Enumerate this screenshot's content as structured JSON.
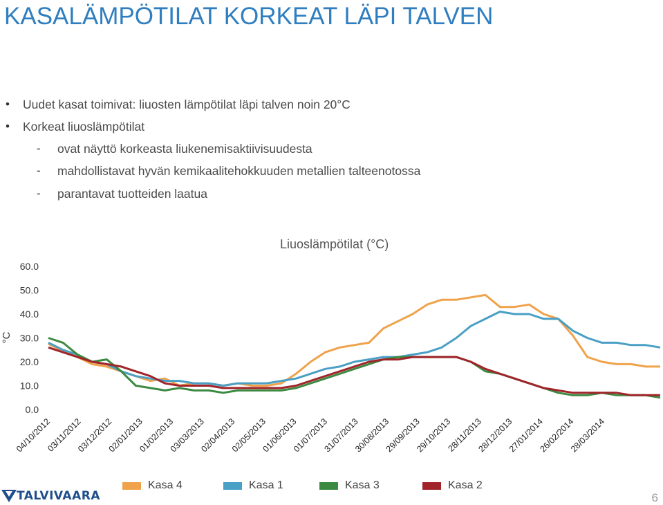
{
  "slide": {
    "title": "KASALÄMPÖTILAT KORKEAT LÄPI TALVEN",
    "bullets": [
      {
        "marker": "•",
        "text": "Uudet kasat toimivat: liuosten lämpötilat läpi talven noin 20°C"
      },
      {
        "marker": "•",
        "text": "Korkeat liuoslämpötilat"
      },
      {
        "marker": "-",
        "text": "ovat näyttö korkeasta liukenemisaktiivisuudesta"
      },
      {
        "marker": "-",
        "text": "mahdollistavat hyvän kemikaalitehokkuuden metallien talteenotossa"
      },
      {
        "marker": "-",
        "text": "parantavat tuotteiden laatua"
      }
    ],
    "logo_text": "TALVIVAARA",
    "page_number": "6"
  },
  "chart_data": {
    "type": "line",
    "title": "Liuoslämpötilat (°C)",
    "ylabel": "°C",
    "ylim": [
      0,
      60
    ],
    "yticks": [
      "60.0",
      "50.0",
      "40.0",
      "30.0",
      "20.0",
      "10.0",
      "0.0"
    ],
    "grid": false,
    "legend_position": "bottom",
    "x_tick_labels": [
      "04/10/2012",
      "03/11/2012",
      "03/12/2012",
      "02/01/2013",
      "01/02/2013",
      "03/03/2013",
      "02/04/2013",
      "02/05/2013",
      "01/06/2013",
      "01/07/2013",
      "31/07/2013",
      "30/08/2013",
      "29/09/2013",
      "29/10/2013",
      "28/11/2013",
      "28/12/2013",
      "27/01/2014",
      "26/02/2014",
      "28/03/2014"
    ],
    "series": [
      {
        "name": "Kasa 4",
        "color": "#f0a24a",
        "values": [
          27.5,
          24.5,
          22,
          19,
          18,
          16,
          14,
          12,
          13,
          10,
          11,
          11,
          10,
          11,
          10,
          10,
          11,
          15,
          20,
          24,
          26,
          27,
          28,
          34,
          37,
          40,
          44,
          46,
          46,
          47,
          48,
          43,
          43,
          44,
          40,
          38,
          31,
          22,
          20,
          19,
          19,
          18,
          18
        ]
      },
      {
        "name": "Kasa 1",
        "color": "#4a9fc5",
        "values": [
          28,
          25,
          23,
          20,
          19,
          16,
          14,
          13,
          12,
          12,
          11,
          11,
          10,
          11,
          11,
          11,
          12,
          13,
          15,
          17,
          18,
          20,
          21,
          22,
          22,
          23,
          24,
          26,
          30,
          35,
          38,
          41,
          40,
          40,
          38,
          38,
          33,
          30,
          28,
          28,
          27,
          27,
          26
        ]
      },
      {
        "name": "Kasa 3",
        "color": "#3c8a42",
        "values": [
          30,
          28,
          23,
          20,
          21,
          16,
          10,
          9,
          8,
          9,
          8,
          8,
          7,
          8,
          8,
          8,
          8,
          9,
          11,
          13,
          15,
          17,
          19,
          21,
          22,
          22,
          22,
          22,
          22,
          20,
          16,
          15,
          13,
          11,
          9,
          7,
          6,
          6,
          7,
          6,
          6,
          6,
          5
        ]
      },
      {
        "name": "Kasa 2",
        "color": "#a0242a",
        "values": [
          26,
          24,
          22,
          20,
          19,
          18,
          16,
          14,
          11,
          10,
          10,
          10,
          9,
          9,
          9,
          9,
          9,
          10,
          12,
          14,
          16,
          18,
          20,
          21,
          21,
          22,
          22,
          22,
          22,
          20,
          17,
          15,
          13,
          11,
          9,
          8,
          7,
          7,
          7,
          7,
          6,
          6,
          6
        ]
      }
    ]
  }
}
